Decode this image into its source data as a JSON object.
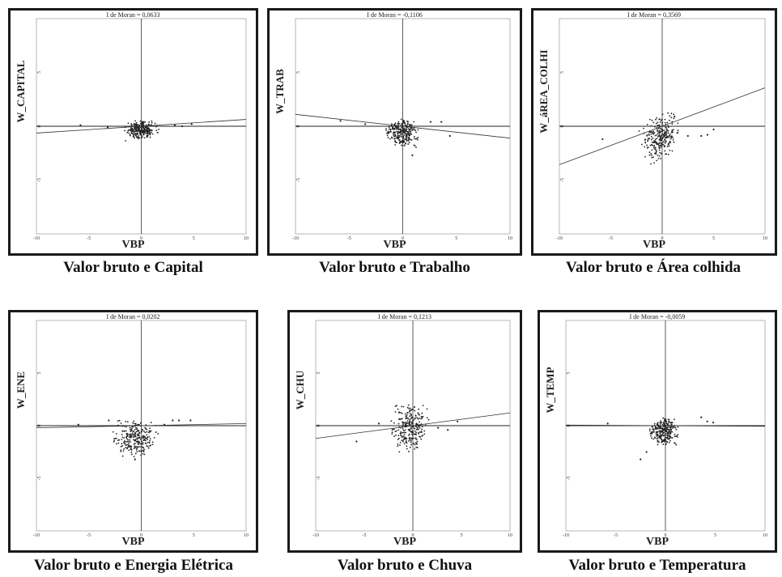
{
  "chart_data": [
    {
      "type": "scatter",
      "title": "I de Moran = 0,0633",
      "ylabel": "W_CAPITAL",
      "xlabel": "VBP",
      "caption": "Valor bruto e Capital",
      "xlim": [
        -10,
        10
      ],
      "ylim": [
        -10,
        10
      ],
      "x_ticks": [
        "-10",
        "-5",
        "0",
        "5",
        "10"
      ],
      "y_ticks": [
        "5",
        "0",
        "-5"
      ],
      "slope": 0.0633,
      "cloud": {
        "x_range": [
          -2,
          2
        ],
        "y_range": [
          -1.3,
          0.6
        ]
      },
      "outliers": [
        [
          -5.8,
          0.1
        ],
        [
          -3.2,
          -0.1
        ],
        [
          3.2,
          0.1
        ],
        [
          3.9,
          0.0
        ],
        [
          4.8,
          0.2
        ]
      ]
    },
    {
      "type": "scatter",
      "title": "I de Moran = -0,1106",
      "ylabel": "W_TRAB",
      "xlabel": "VBP",
      "caption": "Valor bruto e Trabalho",
      "xlim": [
        -10,
        10
      ],
      "ylim": [
        -10,
        10
      ],
      "x_ticks": [
        "-10",
        "-5",
        "0",
        "5",
        "10"
      ],
      "y_ticks": [
        "5",
        "0",
        "-5"
      ],
      "slope": -0.1106,
      "cloud": {
        "x_range": [
          -2,
          2
        ],
        "y_range": [
          -2.0,
          0.8
        ]
      },
      "outliers": [
        [
          -5.8,
          0.5
        ],
        [
          -3.5,
          0.2
        ],
        [
          2.6,
          0.4
        ],
        [
          3.6,
          0.4
        ],
        [
          4.4,
          -0.9
        ],
        [
          0.9,
          -2.7
        ]
      ]
    },
    {
      "type": "scatter",
      "title": "I de Moran = 0,3569",
      "ylabel": "W_áREA_COLHI",
      "xlabel": "VBP",
      "caption": "Valor bruto e Área colhida",
      "xlim": [
        -10,
        10
      ],
      "ylim": [
        -10,
        10
      ],
      "x_ticks": [
        "-10",
        "-5",
        "0",
        "5",
        "10"
      ],
      "y_ticks": [
        "5",
        "0",
        "-5"
      ],
      "slope": 0.3569,
      "cloud": {
        "x_range": [
          -2.5,
          2
        ],
        "y_range": [
          -3.2,
          1.2
        ]
      },
      "outliers": [
        [
          -5.8,
          -1.2
        ],
        [
          2.5,
          -0.9
        ],
        [
          3.8,
          -0.9
        ],
        [
          4.4,
          -0.8
        ],
        [
          5.0,
          -0.3
        ],
        [
          1.2,
          0.9
        ]
      ]
    },
    {
      "type": "scatter",
      "title": "I de Moran = 0,0202",
      "ylabel": "W_ENE",
      "xlabel": "VBP",
      "caption": "Valor bruto e Energia Elétrica",
      "xlim": [
        -10,
        10
      ],
      "ylim": [
        -10,
        10
      ],
      "x_ticks": [
        "-10",
        "-5",
        "0",
        "5",
        "10"
      ],
      "y_ticks": [
        "5",
        "0",
        "-5"
      ],
      "slope": 0.0202,
      "cloud": {
        "x_range": [
          -3,
          2
        ],
        "y_range": [
          -3.0,
          0.6
        ]
      },
      "outliers": [
        [
          -6.0,
          0.1
        ],
        [
          -3.1,
          0.5
        ],
        [
          2.2,
          0.1
        ],
        [
          3.0,
          0.5
        ],
        [
          3.6,
          0.5
        ],
        [
          4.7,
          0.5
        ],
        [
          -0.6,
          -3.2
        ]
      ]
    },
    {
      "type": "scatter",
      "title": "I de Moran = 0,1213",
      "ylabel": "W_CHU",
      "xlabel": "VBP",
      "caption": "Valor bruto e Chuva",
      "xlim": [
        -10,
        10
      ],
      "ylim": [
        -10,
        10
      ],
      "x_ticks": [
        "-10",
        "-5",
        "0",
        "5",
        "10"
      ],
      "y_ticks": [
        "5",
        "0",
        "-5"
      ],
      "slope": 0.1213,
      "cloud": {
        "x_range": [
          -2.5,
          2
        ],
        "y_range": [
          -2.5,
          2.2
        ]
      },
      "outliers": [
        [
          -5.8,
          -1.5
        ],
        [
          -3.5,
          0.2
        ],
        [
          2.6,
          -0.2
        ],
        [
          3.6,
          -0.4
        ],
        [
          4.6,
          0.4
        ]
      ]
    },
    {
      "type": "scatter",
      "title": "I de Moran = -0,0059",
      "ylabel": "W_TEMP",
      "xlabel": "VBP",
      "caption": "Valor bruto e Temperatura",
      "xlim": [
        -10,
        10
      ],
      "ylim": [
        -10,
        10
      ],
      "x_ticks": [
        "-10",
        "-5",
        "0",
        "5",
        "10"
      ],
      "y_ticks": [
        "5",
        "0",
        "-5"
      ],
      "slope": -0.0059,
      "cloud": {
        "x_range": [
          -2,
          1.8
        ],
        "y_range": [
          -2.0,
          0.9
        ]
      },
      "outliers": [
        [
          -5.8,
          0.2
        ],
        [
          -2.5,
          -3.2
        ],
        [
          -1.9,
          -2.5
        ],
        [
          3.6,
          0.8
        ],
        [
          4.2,
          0.4
        ],
        [
          4.8,
          0.3
        ]
      ]
    }
  ]
}
